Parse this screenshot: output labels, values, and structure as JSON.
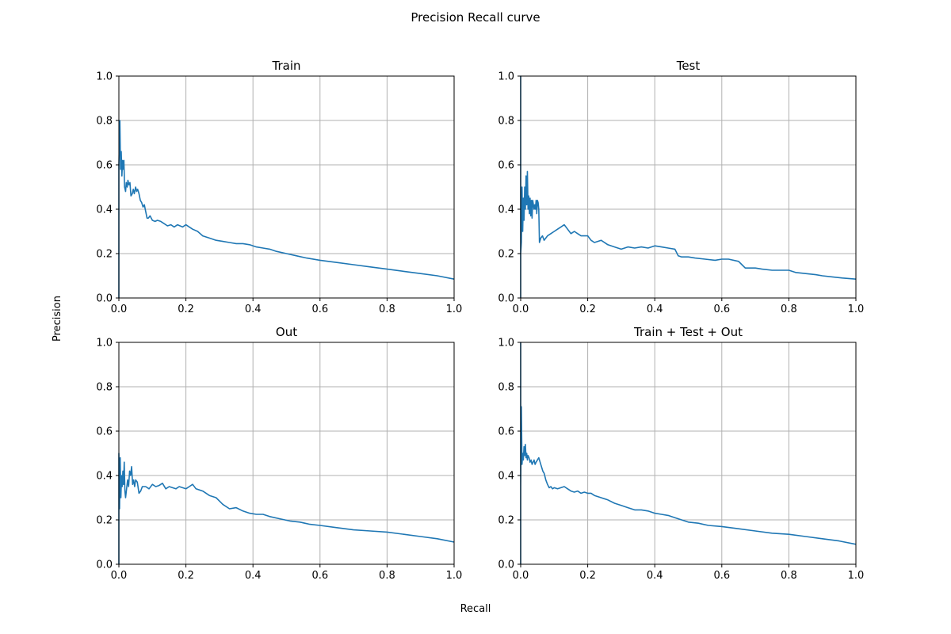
{
  "figure": {
    "title": "Precision Recall curve",
    "xlabel": "Recall",
    "ylabel": "Precision"
  },
  "chart_data": [
    {
      "type": "line",
      "title": "Train",
      "xlim": [
        0,
        1
      ],
      "ylim": [
        0,
        1
      ],
      "xticks": [
        "0.0",
        "0.2",
        "0.4",
        "0.6",
        "0.8",
        "1.0"
      ],
      "yticks": [
        "0.0",
        "0.2",
        "0.4",
        "0.6",
        "0.8",
        "1.0"
      ],
      "grid": true,
      "color": "#1f77b4",
      "series": [
        {
          "x": [
            0.0,
            0.0,
            0.003,
            0.005,
            0.007,
            0.009,
            0.011,
            0.013,
            0.015,
            0.017,
            0.02,
            0.022,
            0.025,
            0.027,
            0.03,
            0.033,
            0.036,
            0.04,
            0.043,
            0.046,
            0.05,
            0.053,
            0.056,
            0.06,
            0.064,
            0.068,
            0.072,
            0.076,
            0.08,
            0.084,
            0.088,
            0.093,
            0.1,
            0.108,
            0.115,
            0.125,
            0.135,
            0.145,
            0.155,
            0.165,
            0.175,
            0.19,
            0.2,
            0.21,
            0.22,
            0.235,
            0.25,
            0.27,
            0.29,
            0.31,
            0.33,
            0.35,
            0.37,
            0.39,
            0.41,
            0.43,
            0.45,
            0.47,
            0.5,
            0.53,
            0.56,
            0.6,
            0.65,
            0.7,
            0.75,
            0.8,
            0.85,
            0.9,
            0.95,
            1.0
          ],
          "y": [
            0.0,
            0.6,
            0.8,
            0.58,
            0.66,
            0.55,
            0.62,
            0.58,
            0.62,
            0.5,
            0.48,
            0.52,
            0.5,
            0.53,
            0.51,
            0.52,
            0.46,
            0.47,
            0.49,
            0.47,
            0.5,
            0.48,
            0.49,
            0.47,
            0.44,
            0.43,
            0.41,
            0.42,
            0.39,
            0.36,
            0.36,
            0.37,
            0.35,
            0.345,
            0.35,
            0.345,
            0.335,
            0.325,
            0.33,
            0.32,
            0.33,
            0.32,
            0.33,
            0.32,
            0.31,
            0.3,
            0.28,
            0.27,
            0.26,
            0.255,
            0.25,
            0.245,
            0.245,
            0.24,
            0.23,
            0.225,
            0.22,
            0.21,
            0.2,
            0.19,
            0.18,
            0.17,
            0.16,
            0.15,
            0.14,
            0.13,
            0.12,
            0.11,
            0.1,
            0.085
          ]
        }
      ]
    },
    {
      "type": "line",
      "title": "Test",
      "xlim": [
        0,
        1
      ],
      "ylim": [
        0,
        1
      ],
      "xticks": [
        "0.0",
        "0.2",
        "0.4",
        "0.6",
        "0.8",
        "1.0"
      ],
      "yticks": [
        "0.0",
        "0.2",
        "0.4",
        "0.6",
        "0.8",
        "1.0"
      ],
      "grid": true,
      "color": "#1f77b4",
      "series": [
        {
          "x": [
            0.0,
            0.0,
            0.0,
            0.002,
            0.004,
            0.006,
            0.008,
            0.01,
            0.012,
            0.014,
            0.016,
            0.018,
            0.02,
            0.022,
            0.024,
            0.026,
            0.028,
            0.03,
            0.032,
            0.034,
            0.036,
            0.038,
            0.04,
            0.042,
            0.044,
            0.046,
            0.048,
            0.05,
            0.052,
            0.054,
            0.056,
            0.06,
            0.065,
            0.07,
            0.08,
            0.09,
            0.1,
            0.11,
            0.12,
            0.13,
            0.14,
            0.15,
            0.16,
            0.17,
            0.18,
            0.19,
            0.2,
            0.21,
            0.22,
            0.24,
            0.26,
            0.28,
            0.3,
            0.32,
            0.34,
            0.36,
            0.38,
            0.4,
            0.42,
            0.44,
            0.46,
            0.47,
            0.48,
            0.5,
            0.52,
            0.55,
            0.58,
            0.6,
            0.62,
            0.65,
            0.66,
            0.67,
            0.68,
            0.7,
            0.72,
            0.75,
            0.78,
            0.8,
            0.82,
            0.85,
            0.88,
            0.9,
            0.93,
            0.96,
            1.0
          ],
          "y": [
            0.0,
            1.0,
            0.2,
            0.25,
            0.5,
            0.3,
            0.45,
            0.35,
            0.5,
            0.4,
            0.55,
            0.42,
            0.57,
            0.4,
            0.46,
            0.38,
            0.45,
            0.37,
            0.44,
            0.36,
            0.44,
            0.42,
            0.4,
            0.42,
            0.4,
            0.44,
            0.38,
            0.44,
            0.43,
            0.4,
            0.25,
            0.27,
            0.28,
            0.26,
            0.28,
            0.29,
            0.3,
            0.31,
            0.32,
            0.33,
            0.31,
            0.29,
            0.3,
            0.29,
            0.28,
            0.28,
            0.28,
            0.26,
            0.25,
            0.26,
            0.24,
            0.23,
            0.22,
            0.23,
            0.225,
            0.23,
            0.225,
            0.235,
            0.23,
            0.225,
            0.22,
            0.19,
            0.185,
            0.185,
            0.18,
            0.175,
            0.17,
            0.175,
            0.175,
            0.165,
            0.15,
            0.135,
            0.135,
            0.135,
            0.13,
            0.125,
            0.125,
            0.125,
            0.115,
            0.11,
            0.105,
            0.1,
            0.095,
            0.09,
            0.085
          ]
        }
      ]
    },
    {
      "type": "line",
      "title": "Out",
      "xlim": [
        0,
        1
      ],
      "ylim": [
        0,
        1
      ],
      "xticks": [
        "0.0",
        "0.2",
        "0.4",
        "0.6",
        "0.8",
        "1.0"
      ],
      "yticks": [
        "0.0",
        "0.2",
        "0.4",
        "0.6",
        "0.8",
        "1.0"
      ],
      "grid": true,
      "color": "#1f77b4",
      "series": [
        {
          "x": [
            0.0,
            0.0,
            0.002,
            0.004,
            0.006,
            0.008,
            0.01,
            0.012,
            0.014,
            0.016,
            0.018,
            0.02,
            0.023,
            0.026,
            0.029,
            0.032,
            0.035,
            0.038,
            0.041,
            0.044,
            0.047,
            0.05,
            0.055,
            0.06,
            0.065,
            0.07,
            0.08,
            0.09,
            0.1,
            0.11,
            0.12,
            0.13,
            0.14,
            0.15,
            0.16,
            0.17,
            0.18,
            0.19,
            0.2,
            0.21,
            0.22,
            0.23,
            0.25,
            0.27,
            0.29,
            0.31,
            0.33,
            0.35,
            0.37,
            0.39,
            0.41,
            0.43,
            0.45,
            0.48,
            0.51,
            0.54,
            0.57,
            0.6,
            0.65,
            0.7,
            0.75,
            0.8,
            0.85,
            0.9,
            0.95,
            1.0
          ],
          "y": [
            0.0,
            0.5,
            0.25,
            0.48,
            0.3,
            0.4,
            0.35,
            0.42,
            0.36,
            0.46,
            0.33,
            0.3,
            0.34,
            0.38,
            0.35,
            0.42,
            0.4,
            0.44,
            0.36,
            0.38,
            0.35,
            0.38,
            0.37,
            0.32,
            0.33,
            0.35,
            0.35,
            0.34,
            0.36,
            0.35,
            0.355,
            0.365,
            0.34,
            0.35,
            0.345,
            0.34,
            0.35,
            0.345,
            0.34,
            0.35,
            0.36,
            0.34,
            0.33,
            0.31,
            0.3,
            0.27,
            0.25,
            0.255,
            0.24,
            0.23,
            0.225,
            0.225,
            0.215,
            0.205,
            0.195,
            0.19,
            0.18,
            0.175,
            0.165,
            0.155,
            0.15,
            0.145,
            0.135,
            0.125,
            0.115,
            0.1
          ]
        }
      ]
    },
    {
      "type": "line",
      "title": "Train + Test + Out",
      "xlim": [
        0,
        1
      ],
      "ylim": [
        0,
        1
      ],
      "xticks": [
        "0.0",
        "0.2",
        "0.4",
        "0.6",
        "0.8",
        "1.0"
      ],
      "yticks": [
        "0.0",
        "0.2",
        "0.4",
        "0.6",
        "0.8",
        "1.0"
      ],
      "grid": true,
      "color": "#1f77b4",
      "series": [
        {
          "x": [
            0.0,
            0.0,
            0.0,
            0.002,
            0.004,
            0.006,
            0.008,
            0.01,
            0.012,
            0.014,
            0.016,
            0.018,
            0.02,
            0.022,
            0.025,
            0.028,
            0.031,
            0.034,
            0.037,
            0.04,
            0.043,
            0.046,
            0.05,
            0.054,
            0.058,
            0.062,
            0.066,
            0.07,
            0.075,
            0.08,
            0.085,
            0.09,
            0.095,
            0.1,
            0.11,
            0.12,
            0.13,
            0.14,
            0.15,
            0.16,
            0.17,
            0.18,
            0.19,
            0.2,
            0.21,
            0.22,
            0.24,
            0.26,
            0.28,
            0.3,
            0.32,
            0.34,
            0.36,
            0.38,
            0.4,
            0.42,
            0.44,
            0.46,
            0.48,
            0.5,
            0.53,
            0.56,
            0.6,
            0.65,
            0.7,
            0.75,
            0.8,
            0.85,
            0.9,
            0.95,
            1.0
          ],
          "y": [
            0.0,
            1.0,
            0.35,
            0.71,
            0.45,
            0.5,
            0.47,
            0.53,
            0.49,
            0.54,
            0.48,
            0.5,
            0.47,
            0.49,
            0.48,
            0.46,
            0.47,
            0.45,
            0.46,
            0.47,
            0.45,
            0.46,
            0.47,
            0.48,
            0.46,
            0.44,
            0.42,
            0.41,
            0.38,
            0.36,
            0.345,
            0.35,
            0.34,
            0.345,
            0.34,
            0.345,
            0.35,
            0.34,
            0.33,
            0.325,
            0.33,
            0.32,
            0.325,
            0.32,
            0.32,
            0.31,
            0.3,
            0.29,
            0.275,
            0.265,
            0.255,
            0.245,
            0.245,
            0.24,
            0.23,
            0.225,
            0.22,
            0.21,
            0.2,
            0.19,
            0.185,
            0.175,
            0.17,
            0.16,
            0.15,
            0.14,
            0.135,
            0.125,
            0.115,
            0.105,
            0.09
          ]
        }
      ]
    }
  ]
}
